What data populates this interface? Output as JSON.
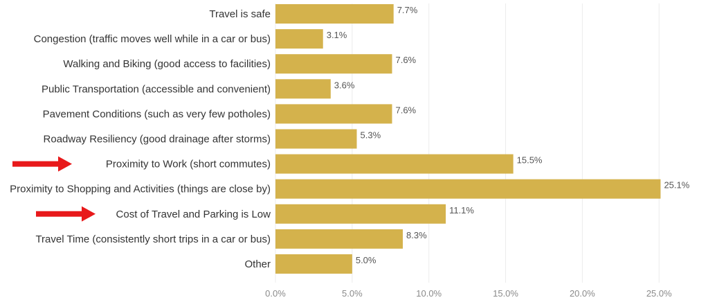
{
  "chart_data": {
    "type": "bar",
    "orientation": "horizontal",
    "categories": [
      "Travel is safe",
      "Congestion (traffic moves well while in a car or bus)",
      "Walking and Biking (good access to facilities)",
      "Public Transportation (accessible and convenient)",
      "Pavement Conditions (such as very few potholes)",
      "Roadway Resiliency (good drainage after storms)",
      "Proximity to Work (short commutes)",
      "Proximity to Shopping and Activities (things are close by)",
      "Cost of Travel and Parking is Low",
      "Travel Time (consistently short trips in a car or bus)",
      "Other"
    ],
    "values": [
      7.7,
      3.1,
      7.6,
      3.6,
      7.6,
      5.3,
      15.5,
      25.1,
      11.1,
      8.3,
      5.0
    ],
    "value_labels": [
      "7.7%",
      "3.1%",
      "7.6%",
      "3.6%",
      "7.6%",
      "5.3%",
      "15.5%",
      "25.1%",
      "11.1%",
      "8.3%",
      "5.0%"
    ],
    "x_ticks": [
      0,
      5,
      10,
      15,
      20,
      25
    ],
    "x_tick_labels": [
      "0.0%",
      "5.0%",
      "10.0%",
      "15.0%",
      "20.0%",
      "25.0%"
    ],
    "xlim": [
      0,
      26.5
    ],
    "grid": "vertical",
    "highlighted_categories": [
      "Proximity to Work (short commutes)",
      "Cost of Travel and Parking is Low"
    ],
    "title": "",
    "xlabel": "",
    "ylabel": "",
    "colors": {
      "bar": "#d4b24c",
      "arrow": "#e8191b",
      "grid": "#ececec"
    }
  }
}
